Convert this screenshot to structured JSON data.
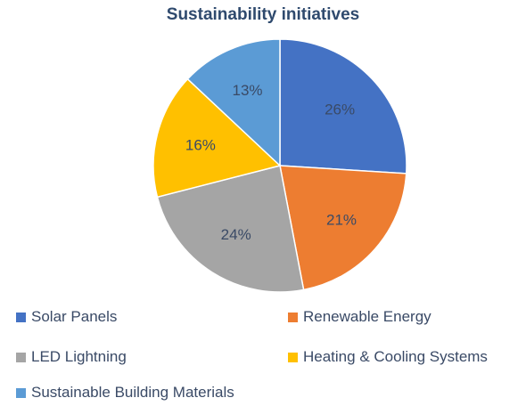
{
  "chart_data": {
    "type": "pie",
    "title": "Sustainability initiatives",
    "slices": [
      {
        "label": "Solar Panels",
        "value": 26,
        "value_label": "26%",
        "color": "#4472c4"
      },
      {
        "label": "Renewable Energy",
        "value": 21,
        "value_label": "21%",
        "color": "#ed7d31"
      },
      {
        "label": "LED Lightning",
        "value": 24,
        "value_label": "24%",
        "color": "#a5a5a5"
      },
      {
        "label": "Heating & Cooling Systems",
        "value": 16,
        "value_label": "16%",
        "color": "#ffc000"
      },
      {
        "label": "Sustainable Building Materials",
        "value": 13,
        "value_label": "13%",
        "color": "#5b9bd5"
      }
    ],
    "legend_position": "bottom"
  }
}
